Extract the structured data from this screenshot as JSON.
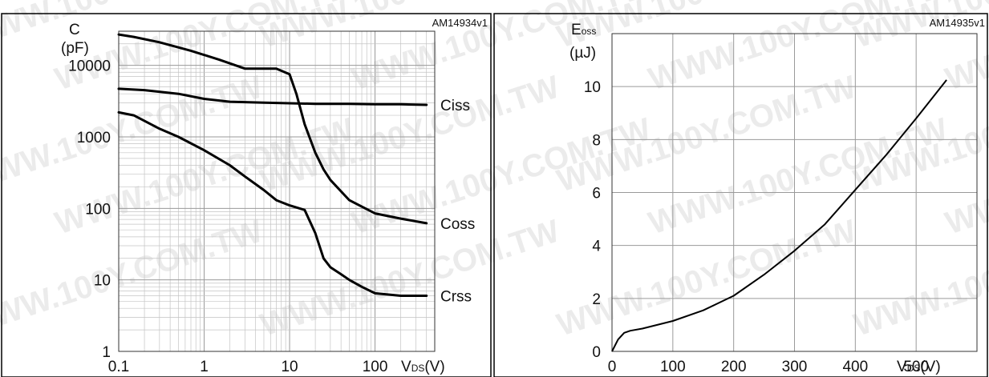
{
  "page": {
    "header_fragment": ""
  },
  "watermark": {
    "text": "WWW.100Y.COM.TW"
  },
  "chart_data": [
    {
      "type": "line",
      "ref": "AM14934v1",
      "ylabel": "C",
      "yunit": "(pF)",
      "xlabel_main": "V",
      "xlabel_sub": "DS",
      "xlabel_unit": "(V)",
      "xscale": "log",
      "yscale": "log",
      "xlim": [
        0.1,
        500
      ],
      "ylim": [
        1,
        30000
      ],
      "xticks": [
        {
          "v": 0.1,
          "label": "0.1"
        },
        {
          "v": 1,
          "label": "1"
        },
        {
          "v": 10,
          "label": "10"
        },
        {
          "v": 100,
          "label": "100"
        }
      ],
      "yticks": [
        {
          "v": 1,
          "label": "1"
        },
        {
          "v": 10,
          "label": "10"
        },
        {
          "v": 100,
          "label": "100"
        },
        {
          "v": 1000,
          "label": "1000"
        },
        {
          "v": 10000,
          "label": "10000"
        }
      ],
      "grid": true,
      "series": [
        {
          "name": "Ciss",
          "x": [
            0.1,
            0.2,
            0.5,
            1,
            2,
            5,
            10,
            20,
            50,
            100,
            200,
            400
          ],
          "y": [
            4700,
            4500,
            4000,
            3400,
            3100,
            3000,
            2950,
            2900,
            2900,
            2850,
            2850,
            2800
          ]
        },
        {
          "name": "Coss",
          "x": [
            0.1,
            0.15,
            0.3,
            0.7,
            1.5,
            3,
            7,
            10,
            12,
            15,
            20,
            25,
            30,
            50,
            100,
            200,
            400
          ],
          "y": [
            27000,
            25000,
            21000,
            16000,
            12000,
            9000,
            9000,
            7500,
            4000,
            1500,
            600,
            350,
            250,
            130,
            85,
            72,
            62
          ]
        },
        {
          "name": "Crss",
          "x": [
            0.1,
            0.15,
            0.3,
            0.5,
            1,
            2,
            3,
            5,
            7,
            10,
            15,
            20,
            25,
            30,
            40,
            50,
            70,
            100,
            200,
            400
          ],
          "y": [
            2200,
            2000,
            1300,
            1000,
            650,
            400,
            280,
            180,
            130,
            110,
            95,
            45,
            20,
            15,
            12,
            10,
            8,
            6.5,
            6,
            6
          ]
        }
      ]
    },
    {
      "type": "line",
      "ref": "AM14935v1",
      "ylabel_main": "E",
      "ylabel_sub": "oss",
      "yunit": "(µJ)",
      "xlabel_main": "V",
      "xlabel_sub": "DS",
      "xlabel_unit": "(V)",
      "xlim": [
        0,
        600
      ],
      "ylim": [
        0,
        12
      ],
      "xticks": [
        0,
        100,
        200,
        300,
        400,
        500
      ],
      "yticks": [
        0,
        2,
        4,
        6,
        8,
        10
      ],
      "grid": true,
      "series": [
        {
          "name": "",
          "x": [
            0,
            10,
            20,
            30,
            50,
            100,
            150,
            200,
            250,
            300,
            350,
            400,
            450,
            500,
            550
          ],
          "y": [
            0,
            0.45,
            0.7,
            0.78,
            0.86,
            1.15,
            1.55,
            2.1,
            2.9,
            3.8,
            4.8,
            6.1,
            7.4,
            8.8,
            10.25
          ]
        }
      ]
    }
  ]
}
